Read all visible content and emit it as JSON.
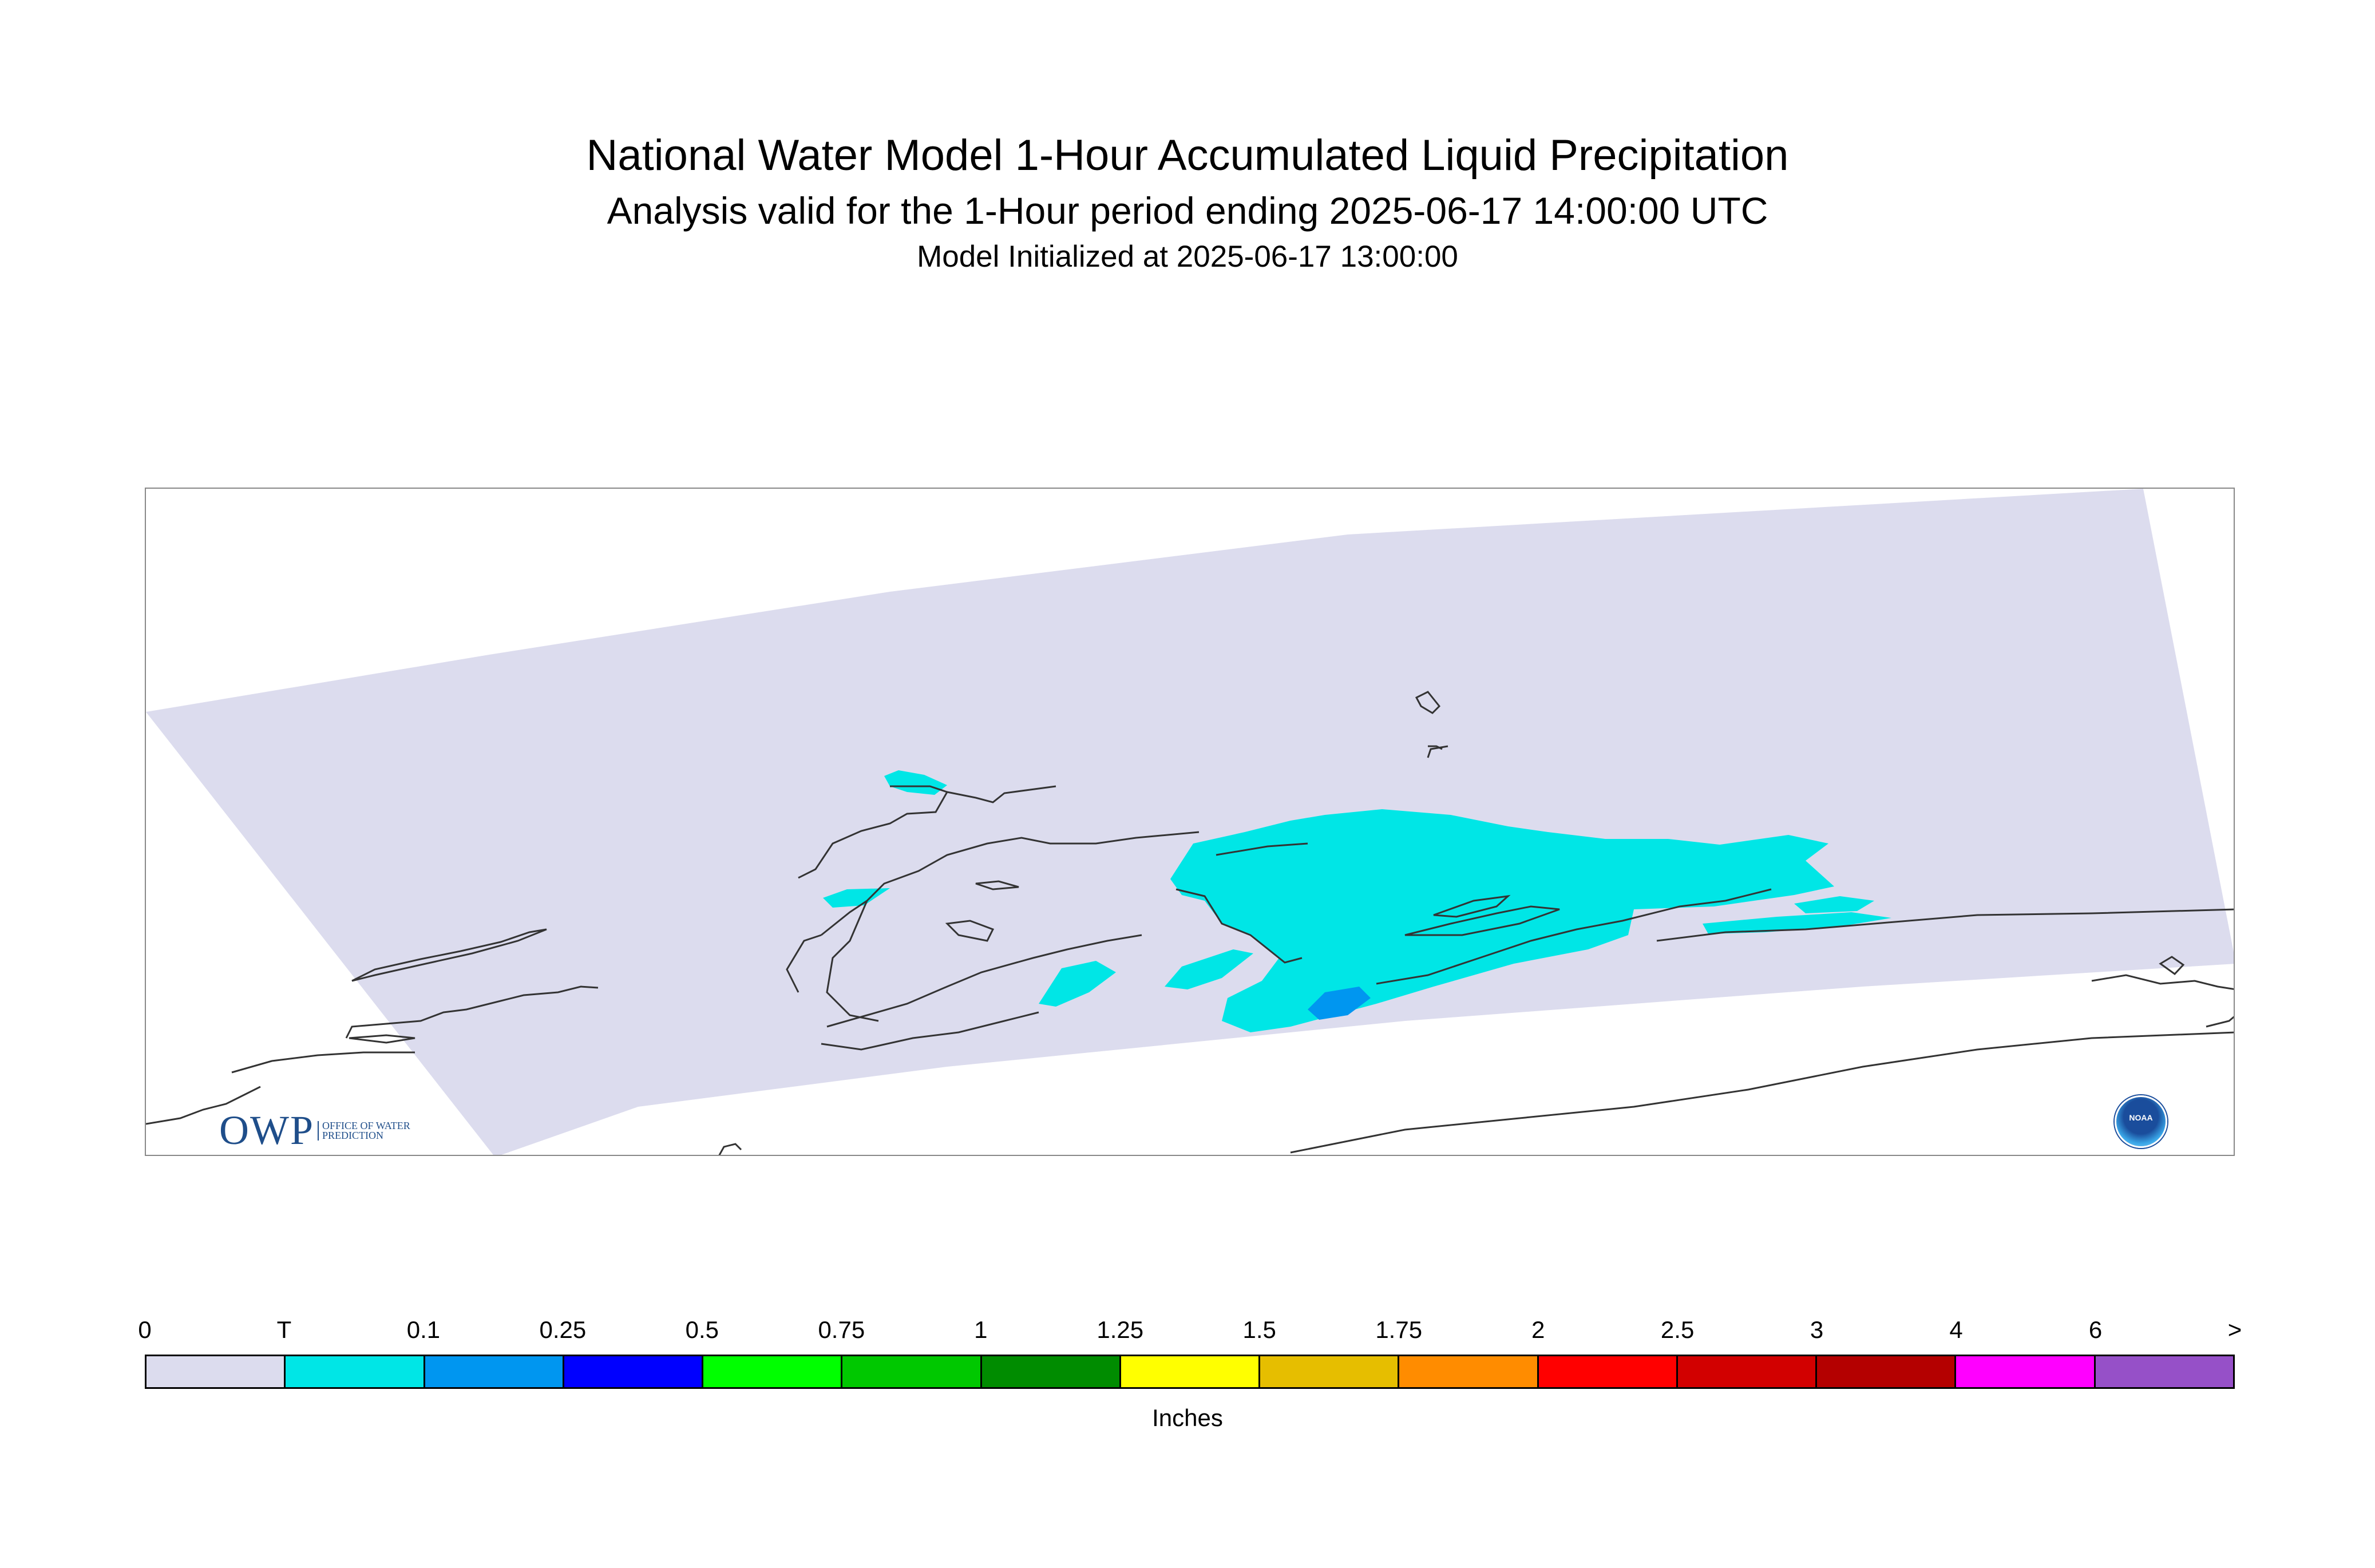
{
  "header": {
    "title": "National Water Model 1-Hour Accumulated Liquid Precipitation",
    "subtitle": "Analysis valid for the 1-Hour period ending 2025-06-17 14:00:00 UTC",
    "init": "Model Initialized at 2025-06-17 13:00:00"
  },
  "logos": {
    "owp_text": "OWP",
    "owp_sub": "OFFICE OF WATER PREDICTION",
    "noaa_text": "NOAA"
  },
  "map": {
    "domain_color": "#dcdcee",
    "coast_color": "#333333",
    "precip_areas": [
      {
        "class": "T",
        "color": "#00e6e6"
      },
      {
        "class": "0.1",
        "color": "#0096f0"
      }
    ]
  },
  "legend": {
    "ticks": [
      "0",
      "T",
      "0.1",
      "0.25",
      "0.5",
      "0.75",
      "1",
      "1.25",
      "1.5",
      "1.75",
      "2",
      "2.5",
      "3",
      "4",
      "6",
      ">"
    ],
    "colors": [
      "#dcdcee",
      "#00e6e6",
      "#0096f0",
      "#0000ff",
      "#00ff00",
      "#00c800",
      "#008c00",
      "#ffff00",
      "#e6be00",
      "#ff8c00",
      "#ff0000",
      "#d20000",
      "#b40000",
      "#ff00ff",
      "#9650c8"
    ],
    "units": "Inches"
  }
}
